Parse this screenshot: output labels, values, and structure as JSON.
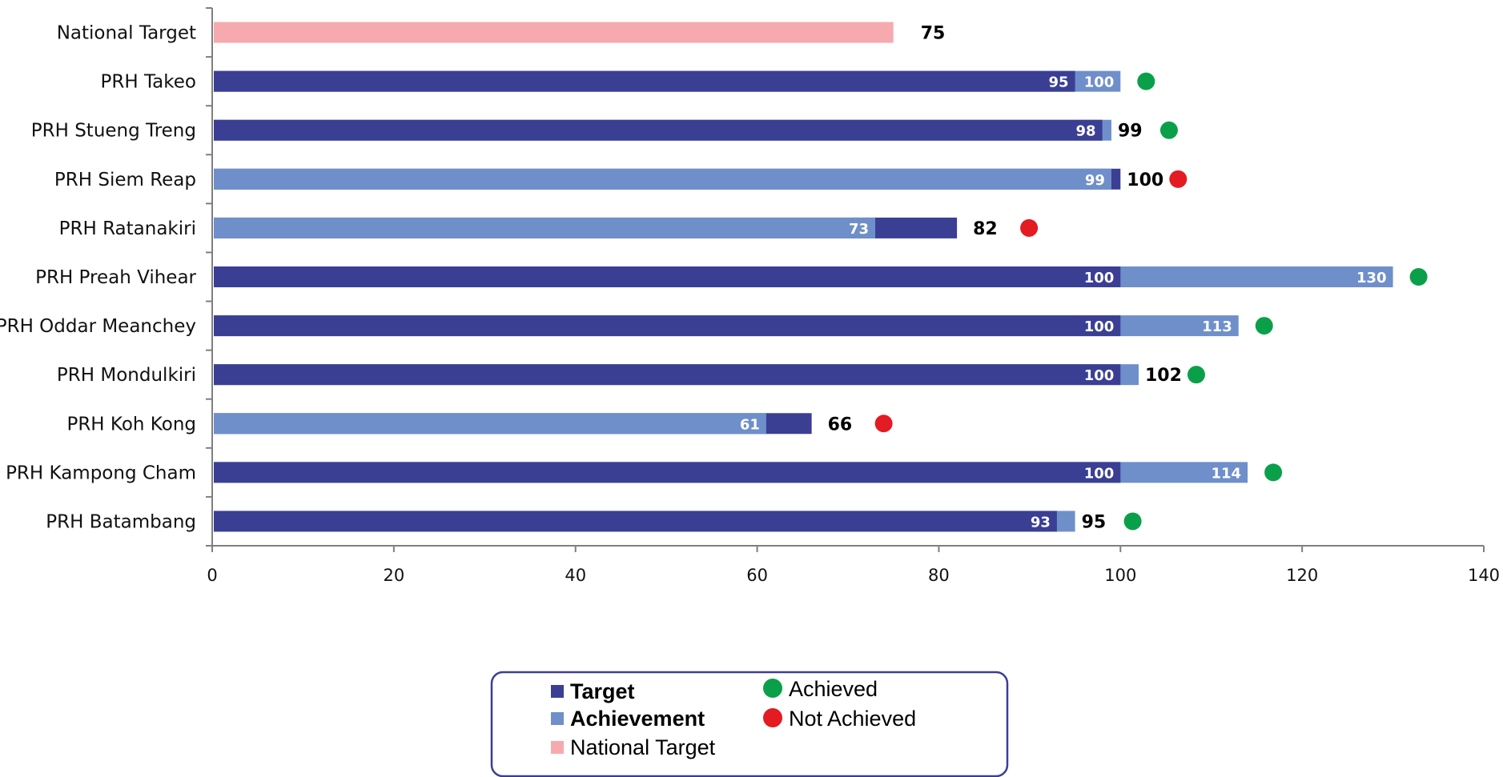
{
  "chart_data": {
    "type": "bar",
    "orientation": "horizontal",
    "categories": [
      "National Target",
      "PRH Takeo",
      "PRH Stueng Treng",
      "PRH Siem Reap",
      "PRH Ratanakiri",
      "PRH Preah Vihear",
      "PRH Oddar Meanchey",
      "PRH Mondulkiri",
      "PRH Koh Kong",
      "PRH Kampong Cham",
      "PRH Batambang"
    ],
    "series": [
      {
        "name": "Target",
        "color": "#3a3f94",
        "values": [
          null,
          95,
          98,
          100,
          82,
          100,
          100,
          100,
          66,
          100,
          93
        ]
      },
      {
        "name": "Achievement",
        "color": "#6f8fca",
        "values": [
          null,
          100,
          99,
          99,
          73,
          130,
          113,
          102,
          61,
          114,
          95
        ]
      },
      {
        "name": "National Target",
        "color": "#f6aab0",
        "values": [
          75,
          null,
          null,
          null,
          null,
          null,
          null,
          null,
          null,
          null,
          null
        ]
      }
    ],
    "status": [
      null,
      "Achieved",
      "Achieved",
      "Not Achieved",
      "Not Achieved",
      "Achieved",
      "Achieved",
      "Achieved",
      "Not Achieved",
      "Achieved",
      "Achieved"
    ],
    "status_colors": {
      "Achieved": "#0aa04a",
      "Not Achieved": "#e31b23"
    },
    "xlim": [
      0,
      140
    ],
    "xticks": [
      0,
      20,
      40,
      60,
      80,
      100,
      120,
      140
    ],
    "xlabel": "",
    "ylabel": "",
    "title": "",
    "grid": false,
    "legend": {
      "position": "bottom-center",
      "items": [
        "Target",
        "Achievement",
        "National Target"
      ],
      "status_items": [
        "Achieved",
        "Not Achieved"
      ]
    }
  }
}
